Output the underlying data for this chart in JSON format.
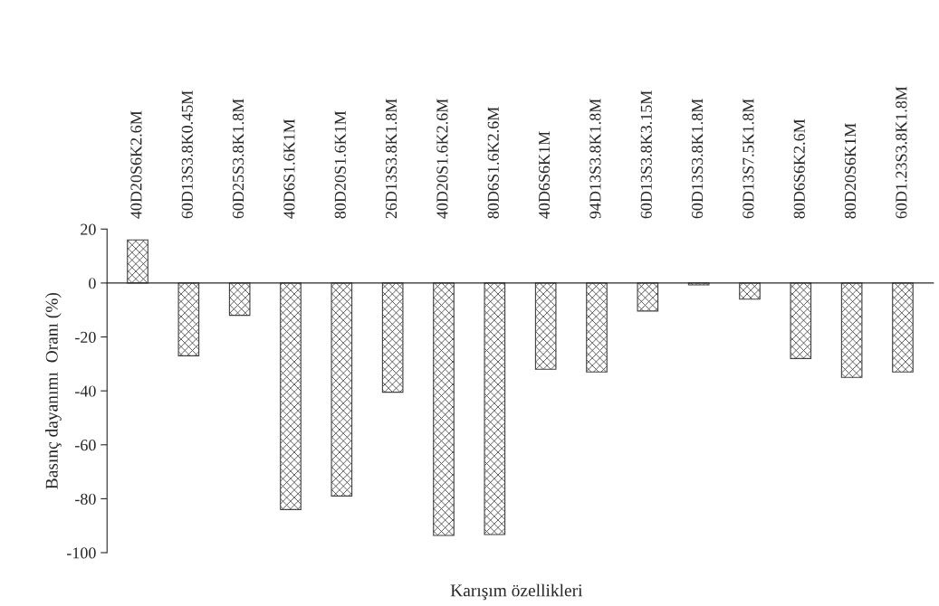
{
  "chart_data": {
    "type": "bar",
    "categories": [
      "40D20S6K2.6M",
      "60D13S3.8K0.45M",
      "60D25S3.8K1.8M",
      "40D6S1.6K1M",
      "80D20S1.6K1M",
      "26D13S3.8K1.8M",
      "40D20S1.6K2.6M",
      "80D6S1.6K2.6M",
      "40D6S6K1M",
      "94D13S3.8K1.8M",
      "60D13S3.8K3.15M",
      "60D13S3.8K1.8M",
      "60D13S7.5K1.8M",
      "80D6S6K2.6M",
      "80D20S6K1M",
      "60D1.23S3.8K1.8M"
    ],
    "values": [
      16,
      -27,
      -12,
      -84,
      -79,
      -40.5,
      -93.6,
      -93.3,
      -32,
      -33,
      -10.4,
      -0.7,
      -6,
      -28,
      -35,
      -33
    ],
    "color": "#404040",
    "xlabel": "Karışım özellikleri",
    "ylabel": "Basınç dayanımı  Oranı (%)",
    "ylim": [
      -100,
      20
    ],
    "yticks": [
      -100,
      -80,
      -60,
      -40,
      -20,
      0,
      20
    ],
    "legend": false
  }
}
